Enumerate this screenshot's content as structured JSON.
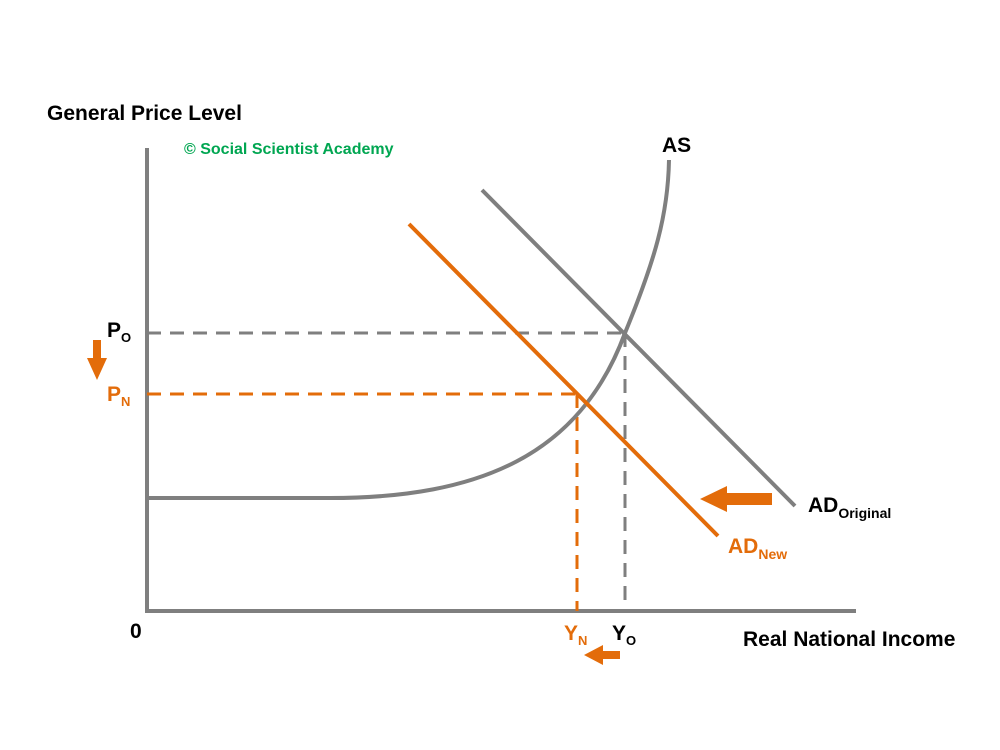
{
  "labels": {
    "y_axis_title": "General Price Level",
    "x_axis_title": "Real National Income",
    "copyright": "© Social Scientist Academy",
    "origin": "0",
    "as_curve": "AS",
    "ad_original_main": "AD",
    "ad_original_sub": "Original",
    "ad_new_main": "AD",
    "ad_new_sub": "New",
    "p_original_main": "P",
    "p_original_sub": "O",
    "p_new_main": "P",
    "p_new_sub": "N",
    "y_new_main": "Y",
    "y_new_sub": "N",
    "y_original_main": "Y",
    "y_original_sub": "O"
  },
  "colors": {
    "axis": "#7f7f7f",
    "curve_original": "#7f7f7f",
    "curve_new": "#e36c0a",
    "text_dark": "#000000",
    "copyright": "#00a651"
  },
  "icons": [
    "arrow-down-icon",
    "arrow-left-icon"
  ]
}
